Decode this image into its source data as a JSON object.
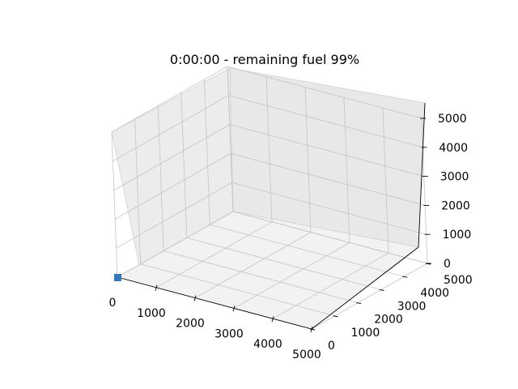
{
  "chart_data": {
    "type": "scatter",
    "projection": "3d",
    "title": "0:00:00 - remaining fuel 99%",
    "xlabel": "",
    "ylabel": "",
    "zlabel": "",
    "xlim": [
      0,
      5000
    ],
    "ylim": [
      0,
      5000
    ],
    "zlim": [
      0,
      5000
    ],
    "x_ticks": [
      0,
      1000,
      2000,
      3000,
      4000,
      5000
    ],
    "y_ticks": [
      0,
      1000,
      2000,
      3000,
      4000,
      5000
    ],
    "z_ticks": [
      0,
      1000,
      2000,
      3000,
      4000,
      5000
    ],
    "grid": true,
    "marker_color": "#3b78b8",
    "points": [
      {
        "x": 0,
        "y": 0,
        "z": 0
      }
    ]
  }
}
